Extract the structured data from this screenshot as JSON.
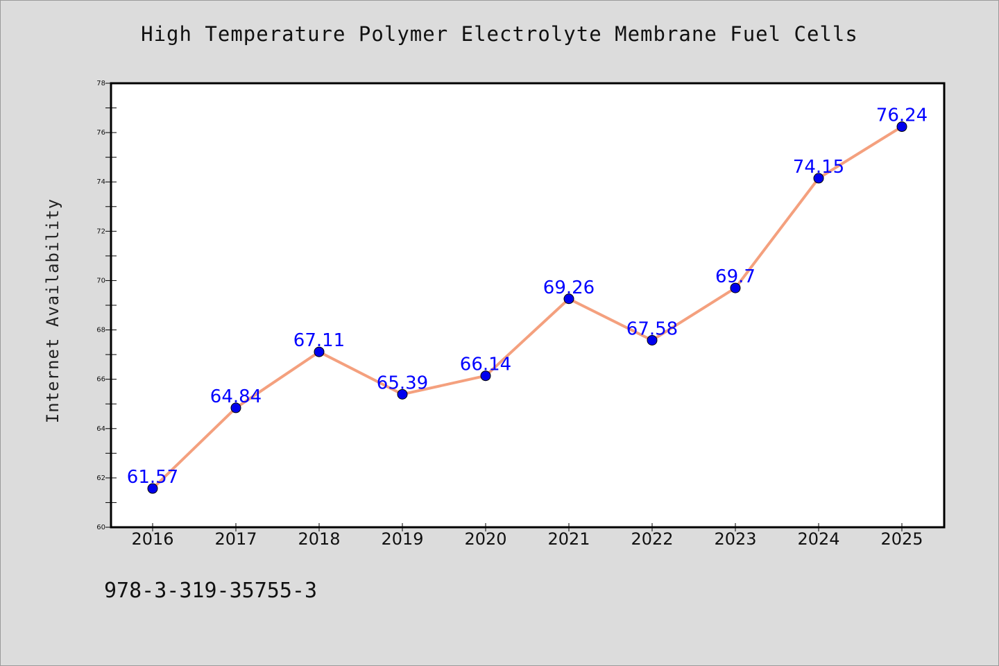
{
  "chart_data": {
    "type": "line",
    "title": "High Temperature Polymer Electrolyte Membrane Fuel Cells",
    "xlabel": "",
    "ylabel": "Internet Availability",
    "categories": [
      "2016",
      "2017",
      "2018",
      "2019",
      "2020",
      "2021",
      "2022",
      "2023",
      "2024",
      "2025"
    ],
    "series": [
      {
        "values": [
          61.57,
          64.84,
          67.11,
          65.39,
          66.14,
          69.26,
          67.58,
          69.7,
          74.15,
          76.24
        ],
        "labels": [
          "61.57",
          "64.84",
          "67.11",
          "65.39",
          "66.14",
          "69.26",
          "67.58",
          "69.7",
          "74.15",
          "76.24"
        ]
      }
    ],
    "ylim": [
      60,
      78
    ],
    "yticks": [
      "60",
      "62",
      "64",
      "66",
      "68",
      "70",
      "72",
      "74",
      "76",
      "78"
    ],
    "grid": false,
    "legend": "none",
    "colors": {
      "line": "#f4a07e",
      "marker": "#0000ee",
      "marker_edge": "#000000",
      "data_label": "#0000ff"
    }
  },
  "footer": {
    "code": "978-3-319-35755-3"
  }
}
